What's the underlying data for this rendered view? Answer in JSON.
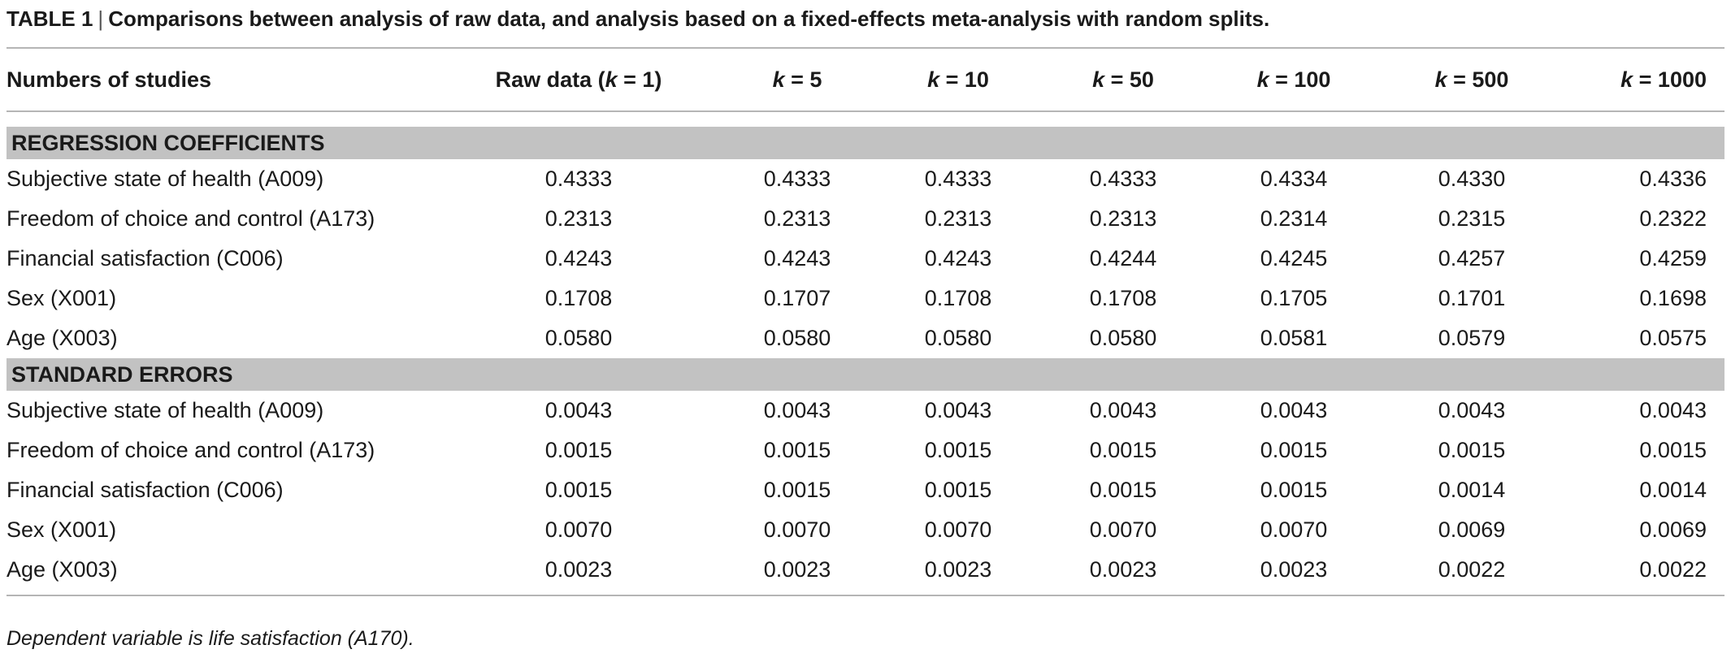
{
  "caption": {
    "label": "TABLE 1",
    "separator": "|",
    "text": "Comparisons between analysis of raw data, and analysis based on a fixed-effects meta-analysis with random splits."
  },
  "header": {
    "c0": "Numbers of studies",
    "c1": "Raw data (k = 1)",
    "c2": "k = 5",
    "c3": "k = 10",
    "c4": "k = 50",
    "c5": "k = 100",
    "c6": "k = 500",
    "c7": "k = 1000"
  },
  "sections": [
    {
      "title": "REGRESSION COEFFICIENTS",
      "rows": [
        {
          "label": "Subjective state of health (A009)",
          "values": [
            "0.4333",
            "0.4333",
            "0.4333",
            "0.4333",
            "0.4334",
            "0.4330",
            "0.4336"
          ]
        },
        {
          "label": "Freedom of choice and control (A173)",
          "values": [
            "0.2313",
            "0.2313",
            "0.2313",
            "0.2313",
            "0.2314",
            "0.2315",
            "0.2322"
          ]
        },
        {
          "label": "Financial satisfaction (C006)",
          "values": [
            "0.4243",
            "0.4243",
            "0.4243",
            "0.4244",
            "0.4245",
            "0.4257",
            "0.4259"
          ]
        },
        {
          "label": "Sex (X001)",
          "values": [
            "0.1708",
            "0.1707",
            "0.1708",
            "0.1708",
            "0.1705",
            "0.1701",
            "0.1698"
          ]
        },
        {
          "label": "Age (X003)",
          "values": [
            "0.0580",
            "0.0580",
            "0.0580",
            "0.0580",
            "0.0581",
            "0.0579",
            "0.0575"
          ]
        }
      ]
    },
    {
      "title": "STANDARD ERRORS",
      "rows": [
        {
          "label": "Subjective state of health (A009)",
          "values": [
            "0.0043",
            "0.0043",
            "0.0043",
            "0.0043",
            "0.0043",
            "0.0043",
            "0.0043"
          ]
        },
        {
          "label": "Freedom of choice and control (A173)",
          "values": [
            "0.0015",
            "0.0015",
            "0.0015",
            "0.0015",
            "0.0015",
            "0.0015",
            "0.0015"
          ]
        },
        {
          "label": "Financial satisfaction (C006)",
          "values": [
            "0.0015",
            "0.0015",
            "0.0015",
            "0.0015",
            "0.0015",
            "0.0014",
            "0.0014"
          ]
        },
        {
          "label": "Sex (X001)",
          "values": [
            "0.0070",
            "0.0070",
            "0.0070",
            "0.0070",
            "0.0070",
            "0.0069",
            "0.0069"
          ]
        },
        {
          "label": "Age (X003)",
          "values": [
            "0.0023",
            "0.0023",
            "0.0023",
            "0.0023",
            "0.0023",
            "0.0022",
            "0.0022"
          ]
        }
      ]
    }
  ],
  "footnote": "Dependent variable is life satisfaction (A170)."
}
